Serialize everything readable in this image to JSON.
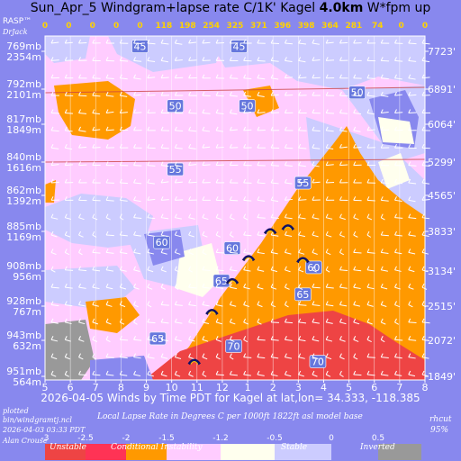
{
  "title": {
    "prefix": "Sun_Apr_5 Windgram+lapse rate C/1K'  Kagel ",
    "bold": "4.0km",
    "suffix": "  W*fpm up"
  },
  "rasp": {
    "label": "RASP™",
    "author": "DrJack"
  },
  "chart_data": {
    "type": "heatmap",
    "x_label": "2026-04-05 Winds by Time PDT for Kagel at lat,lon= 34.333, -118.385",
    "x_ticks": [
      "5",
      "6",
      "7",
      "8",
      "9",
      "10",
      "11",
      "12",
      "1",
      "2",
      "3",
      "4",
      "5",
      "6",
      "7",
      "8"
    ],
    "w_star_fpm": [
      "0",
      "0",
      "0",
      "0",
      "0",
      "118",
      "198",
      "254",
      "325",
      "371",
      "396",
      "398",
      "364",
      "281",
      "74",
      "0",
      "0"
    ],
    "pressure_levels": [
      {
        "mb": "769mb",
        "m": "2354m"
      },
      {
        "mb": "792mb",
        "m": "2101m"
      },
      {
        "mb": "817mb",
        "m": "1849m"
      },
      {
        "mb": "840mb",
        "m": "1616m"
      },
      {
        "mb": "862mb",
        "m": "1392m"
      },
      {
        "mb": "885mb",
        "m": "1169m"
      },
      {
        "mb": "908mb",
        "m": "956m"
      },
      {
        "mb": "928mb",
        "m": "767m"
      },
      {
        "mb": "943mb",
        "m": "632m"
      },
      {
        "mb": "951mb",
        "m": "564m"
      }
    ],
    "ft_levels": [
      "7723'",
      "6891'",
      "6064'",
      "5299'",
      "4565'",
      "3833'",
      "3134'",
      "2515'",
      "2072'",
      "1849'"
    ],
    "rh_contours": [
      {
        "label": "45",
        "x": 7,
        "y": 2300
      },
      {
        "label": "45",
        "x": 14.3,
        "y": 2300
      },
      {
        "label": "50",
        "x": 23,
        "y": 2060
      },
      {
        "label": "50",
        "x": 9.6,
        "y": 1990
      },
      {
        "label": "50",
        "x": 14.9,
        "y": 1990
      },
      {
        "label": "55",
        "x": 9.6,
        "y": 1660
      },
      {
        "label": "55",
        "x": 19,
        "y": 1590
      },
      {
        "label": "60",
        "x": 8.6,
        "y": 1280
      },
      {
        "label": "60",
        "x": 13.8,
        "y": 1250
      },
      {
        "label": "60",
        "x": 19.8,
        "y": 1150
      },
      {
        "label": "65",
        "x": 13,
        "y": 1080
      },
      {
        "label": "65",
        "x": 19,
        "y": 1010
      },
      {
        "label": "65",
        "x": 8.3,
        "y": 780
      },
      {
        "label": "70",
        "x": 13.9,
        "y": 740
      },
      {
        "label": "70",
        "x": 20.1,
        "y": 660
      }
    ],
    "colorbar": {
      "title": "Local Lapse Rate in Degrees C per 1000ft   1822ft asl model base",
      "ticks": [
        "-3",
        "-2.5",
        "-2",
        "-1.5",
        "-1.2",
        "-0.5",
        "0",
        "0.5"
      ],
      "categories": [
        "Unstable",
        "Conditional Instability",
        "Stable",
        "Inverted"
      ],
      "colors": [
        "#ee4444",
        "#ff3355",
        "#ff9900",
        "#ffccff",
        "#ffffee",
        "#ccccff",
        "#8888ee",
        "#999999"
      ]
    }
  },
  "footer": {
    "plotted": "plotted",
    "script": "bin/windgramtj.ncl",
    "date": "2026-04-03 03:33 PDT",
    "author": "Alan Crouse",
    "rhcut": "rhcut",
    "rhcut_val": "95%"
  }
}
